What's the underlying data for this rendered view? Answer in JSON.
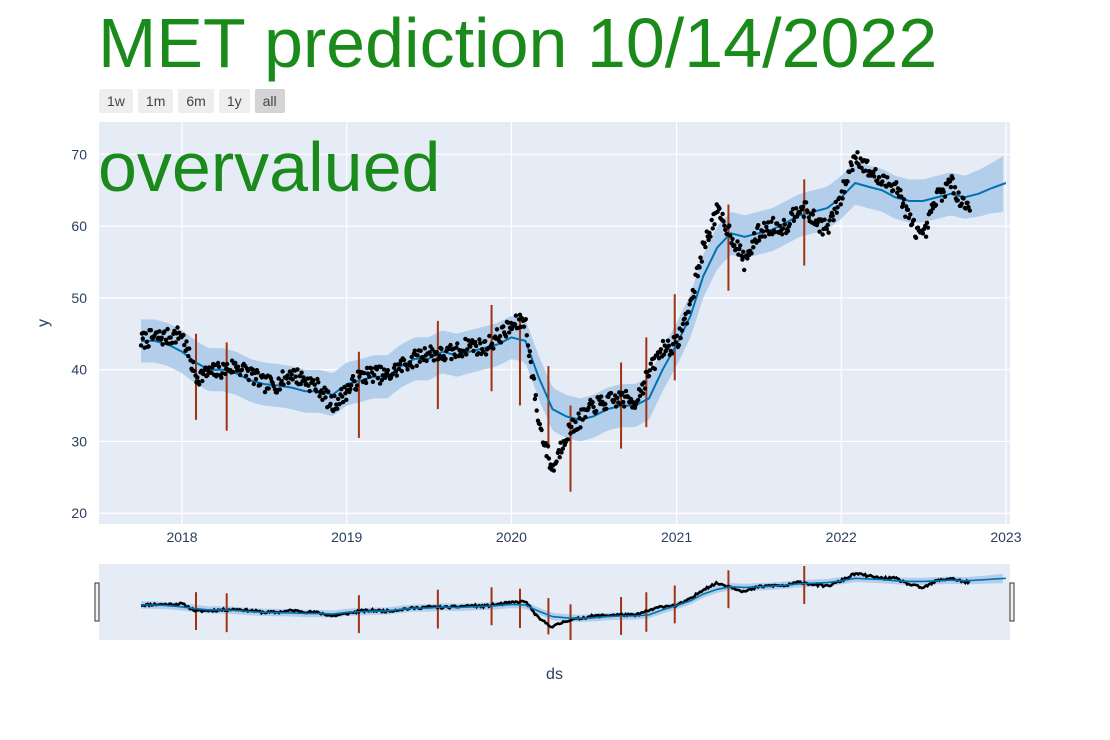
{
  "page": {
    "title": "MET prediction 10/14/2022",
    "annotation": "overvalued"
  },
  "range_selector": {
    "buttons": [
      {
        "label": "1w",
        "active": false
      },
      {
        "label": "1m",
        "active": false
      },
      {
        "label": "6m",
        "active": false
      },
      {
        "label": "1y",
        "active": false
      },
      {
        "label": "all",
        "active": true
      }
    ]
  },
  "chart_data": {
    "type": "line",
    "title": "",
    "xlabel": "ds",
    "ylabel": "y",
    "xlim": [
      "2017-07-01",
      "2023-01-10"
    ],
    "ylim": [
      18.5,
      74.5
    ],
    "x_ticks": [
      "2018",
      "2019",
      "2020",
      "2021",
      "2022",
      "2023"
    ],
    "y_ticks": [
      20,
      30,
      40,
      50,
      60,
      70
    ],
    "grid": true,
    "legend": "none",
    "colors": {
      "plot_bg": "#e5ecf6",
      "forecast": "#0072b2",
      "uncertainty": "#aac9e8",
      "actual": "#000000",
      "changepoint": "#a2330e",
      "title_text": "#1a8a1a"
    },
    "series": [
      {
        "name": "yhat",
        "x": [
          "2017-10-02",
          "2017-11-01",
          "2017-12-01",
          "2018-01-01",
          "2018-02-01",
          "2018-03-01",
          "2018-04-01",
          "2018-05-01",
          "2018-06-01",
          "2018-07-01",
          "2018-08-01",
          "2018-09-01",
          "2018-10-01",
          "2018-11-01",
          "2018-12-01",
          "2019-01-01",
          "2019-02-01",
          "2019-03-01",
          "2019-04-01",
          "2019-05-01",
          "2019-06-01",
          "2019-07-01",
          "2019-08-01",
          "2019-09-01",
          "2019-10-01",
          "2019-11-01",
          "2019-12-01",
          "2020-01-01",
          "2020-02-01",
          "2020-03-01",
          "2020-04-01",
          "2020-05-01",
          "2020-06-01",
          "2020-07-01",
          "2020-08-01",
          "2020-09-01",
          "2020-10-01",
          "2020-11-01",
          "2020-12-01",
          "2021-01-01",
          "2021-02-01",
          "2021-03-01",
          "2021-04-01",
          "2021-05-01",
          "2021-06-01",
          "2021-07-01",
          "2021-08-01",
          "2021-09-01",
          "2021-10-01",
          "2021-11-01",
          "2021-12-01",
          "2022-01-01",
          "2022-02-01",
          "2022-03-01",
          "2022-04-01",
          "2022-05-01",
          "2022-06-01",
          "2022-07-01",
          "2022-08-01",
          "2022-09-01",
          "2022-10-01",
          "2022-11-01",
          "2022-12-01",
          "2023-01-01"
        ],
        "values": [
          44.0,
          44.0,
          43.5,
          42.5,
          41.0,
          40.0,
          40.0,
          39.5,
          38.5,
          38.0,
          37.8,
          37.5,
          37.0,
          37.0,
          36.5,
          38.0,
          38.5,
          39.0,
          39.0,
          40.5,
          41.5,
          41.5,
          42.5,
          42.0,
          42.5,
          43.0,
          43.5,
          44.5,
          44.0,
          39.0,
          34.5,
          33.5,
          33.0,
          33.5,
          34.5,
          35.0,
          35.0,
          36.0,
          40.0,
          43.5,
          47.5,
          53.0,
          57.0,
          59.0,
          58.5,
          59.0,
          59.5,
          60.5,
          61.5,
          62.0,
          62.5,
          64.0,
          66.0,
          65.5,
          65.0,
          64.0,
          63.5,
          63.5,
          64.0,
          64.5,
          64.0,
          64.5,
          65.3,
          66.0
        ]
      },
      {
        "name": "yhat_lower",
        "x": [
          "2017-10-02",
          "2017-11-01",
          "2017-12-01",
          "2018-01-01",
          "2018-02-01",
          "2018-03-01",
          "2018-04-01",
          "2018-05-01",
          "2018-06-01",
          "2018-07-01",
          "2018-08-01",
          "2018-09-01",
          "2018-10-01",
          "2018-11-01",
          "2018-12-01",
          "2019-01-01",
          "2019-02-01",
          "2019-03-01",
          "2019-04-01",
          "2019-05-01",
          "2019-06-01",
          "2019-07-01",
          "2019-08-01",
          "2019-09-01",
          "2019-10-01",
          "2019-11-01",
          "2019-12-01",
          "2020-01-01",
          "2020-02-01",
          "2020-03-01",
          "2020-04-01",
          "2020-05-01",
          "2020-06-01",
          "2020-07-01",
          "2020-08-01",
          "2020-09-01",
          "2020-10-01",
          "2020-11-01",
          "2020-12-01",
          "2021-01-01",
          "2021-02-01",
          "2021-03-01",
          "2021-04-01",
          "2021-05-01",
          "2021-06-01",
          "2021-07-01",
          "2021-08-01",
          "2021-09-01",
          "2021-10-01",
          "2021-11-01",
          "2021-12-01",
          "2022-01-01",
          "2022-02-01",
          "2022-03-01",
          "2022-04-01",
          "2022-05-01",
          "2022-06-01",
          "2022-07-01",
          "2022-08-01",
          "2022-09-01",
          "2022-10-01",
          "2022-11-01",
          "2022-12-01",
          "2023-01-01"
        ],
        "values": [
          41.0,
          41.0,
          40.5,
          39.5,
          38.0,
          37.0,
          37.0,
          36.5,
          35.5,
          35.0,
          34.8,
          34.5,
          34.0,
          34.0,
          33.5,
          35.0,
          35.5,
          36.0,
          36.0,
          37.5,
          38.5,
          38.5,
          39.5,
          39.0,
          39.5,
          40.0,
          40.5,
          41.5,
          41.0,
          36.0,
          31.5,
          30.5,
          30.0,
          30.5,
          31.5,
          32.0,
          32.0,
          33.0,
          37.0,
          40.5,
          44.5,
          50.0,
          54.0,
          56.0,
          55.5,
          56.0,
          56.5,
          57.5,
          58.5,
          59.0,
          59.5,
          61.0,
          63.0,
          62.5,
          62.0,
          61.0,
          60.5,
          60.5,
          61.0,
          61.5,
          61.0,
          61.3,
          61.8,
          62.0
        ]
      },
      {
        "name": "yhat_upper",
        "x": [
          "2017-10-02",
          "2017-11-01",
          "2017-12-01",
          "2018-01-01",
          "2018-02-01",
          "2018-03-01",
          "2018-04-01",
          "2018-05-01",
          "2018-06-01",
          "2018-07-01",
          "2018-08-01",
          "2018-09-01",
          "2018-10-01",
          "2018-11-01",
          "2018-12-01",
          "2019-01-01",
          "2019-02-01",
          "2019-03-01",
          "2019-04-01",
          "2019-05-01",
          "2019-06-01",
          "2019-07-01",
          "2019-08-01",
          "2019-09-01",
          "2019-10-01",
          "2019-11-01",
          "2019-12-01",
          "2020-01-01",
          "2020-02-01",
          "2020-03-01",
          "2020-04-01",
          "2020-05-01",
          "2020-06-01",
          "2020-07-01",
          "2020-08-01",
          "2020-09-01",
          "2020-10-01",
          "2020-11-01",
          "2020-12-01",
          "2021-01-01",
          "2021-02-01",
          "2021-03-01",
          "2021-04-01",
          "2021-05-01",
          "2021-06-01",
          "2021-07-01",
          "2021-08-01",
          "2021-09-01",
          "2021-10-01",
          "2021-11-01",
          "2021-12-01",
          "2022-01-01",
          "2022-02-01",
          "2022-03-01",
          "2022-04-01",
          "2022-05-01",
          "2022-06-01",
          "2022-07-01",
          "2022-08-01",
          "2022-09-01",
          "2022-10-01",
          "2022-11-01",
          "2022-12-01",
          "2023-01-01"
        ],
        "values": [
          47.0,
          47.0,
          46.5,
          45.5,
          44.0,
          43.0,
          43.0,
          42.5,
          41.5,
          41.0,
          40.8,
          40.5,
          40.0,
          40.0,
          39.5,
          41.0,
          41.5,
          42.0,
          42.0,
          43.5,
          44.5,
          44.5,
          45.5,
          45.0,
          45.5,
          46.0,
          46.5,
          47.5,
          47.0,
          42.0,
          37.5,
          36.5,
          36.0,
          36.5,
          37.5,
          38.0,
          38.0,
          39.0,
          43.0,
          46.5,
          50.5,
          56.0,
          60.0,
          62.0,
          61.5,
          62.0,
          62.5,
          63.5,
          64.5,
          65.0,
          65.5,
          67.0,
          69.0,
          68.5,
          68.0,
          67.0,
          66.5,
          66.5,
          67.0,
          67.5,
          67.0,
          67.8,
          68.8,
          70.0
        ]
      },
      {
        "name": "y",
        "x": [
          "2017-10-02",
          "2017-11-01",
          "2017-12-01",
          "2018-01-01",
          "2018-02-01",
          "2018-03-01",
          "2018-04-01",
          "2018-05-01",
          "2018-06-01",
          "2018-07-01",
          "2018-08-01",
          "2018-09-01",
          "2018-10-01",
          "2018-11-01",
          "2018-12-01",
          "2019-01-01",
          "2019-02-01",
          "2019-03-01",
          "2019-04-01",
          "2019-05-01",
          "2019-06-01",
          "2019-07-01",
          "2019-08-01",
          "2019-09-01",
          "2019-10-01",
          "2019-11-01",
          "2019-12-01",
          "2020-01-01",
          "2020-02-01",
          "2020-03-01",
          "2020-04-01",
          "2020-05-01",
          "2020-06-01",
          "2020-07-01",
          "2020-08-01",
          "2020-09-01",
          "2020-10-01",
          "2020-11-01",
          "2020-12-01",
          "2021-01-01",
          "2021-02-01",
          "2021-03-01",
          "2021-04-01",
          "2021-05-01",
          "2021-06-01",
          "2021-07-01",
          "2021-08-01",
          "2021-09-01",
          "2021-10-01",
          "2021-11-01",
          "2021-12-01",
          "2022-01-01",
          "2022-02-01",
          "2022-03-01",
          "2022-04-01",
          "2022-05-01",
          "2022-06-01",
          "2022-07-01",
          "2022-08-01",
          "2022-09-01",
          "2022-10-01"
        ],
        "values": [
          44.0,
          44.5,
          44.5,
          45.0,
          39.0,
          39.5,
          40.0,
          40.5,
          39.5,
          38.0,
          38.0,
          39.5,
          38.5,
          37.5,
          35.0,
          37.0,
          39.0,
          39.5,
          39.0,
          40.5,
          41.5,
          42.5,
          42.0,
          42.5,
          43.5,
          43.0,
          44.5,
          46.0,
          47.0,
          33.0,
          26.0,
          31.0,
          33.0,
          35.0,
          35.5,
          36.0,
          35.5,
          39.5,
          43.0,
          43.5,
          49.0,
          57.0,
          62.0,
          59.0,
          55.0,
          59.0,
          60.0,
          60.0,
          63.0,
          61.0,
          59.5,
          64.0,
          70.0,
          68.0,
          66.0,
          66.0,
          61.0,
          58.0,
          64.0,
          66.0,
          63.0
        ]
      }
    ],
    "changepoints": [
      {
        "x": "2018-02-01",
        "low": 33.0,
        "high": 45.0
      },
      {
        "x": "2018-04-10",
        "low": 31.5,
        "high": 43.8
      },
      {
        "x": "2019-01-28",
        "low": 30.5,
        "high": 42.5
      },
      {
        "x": "2019-07-22",
        "low": 34.5,
        "high": 46.8
      },
      {
        "x": "2019-11-18",
        "low": 37.0,
        "high": 49.0
      },
      {
        "x": "2020-01-20",
        "low": 35.0,
        "high": 47.5
      },
      {
        "x": "2020-03-23",
        "low": 29.0,
        "high": 40.5
      },
      {
        "x": "2020-05-11",
        "low": 23.0,
        "high": 35.0
      },
      {
        "x": "2020-08-31",
        "low": 29.0,
        "high": 41.0
      },
      {
        "x": "2020-10-26",
        "low": 32.0,
        "high": 44.5
      },
      {
        "x": "2020-12-28",
        "low": 38.5,
        "high": 50.5
      },
      {
        "x": "2021-04-26",
        "low": 51.0,
        "high": 63.0
      },
      {
        "x": "2021-10-11",
        "low": 54.5,
        "high": 66.5
      }
    ],
    "rangeslider": {
      "visible": true,
      "window": [
        "2017-07-01",
        "2023-01-10"
      ]
    }
  }
}
